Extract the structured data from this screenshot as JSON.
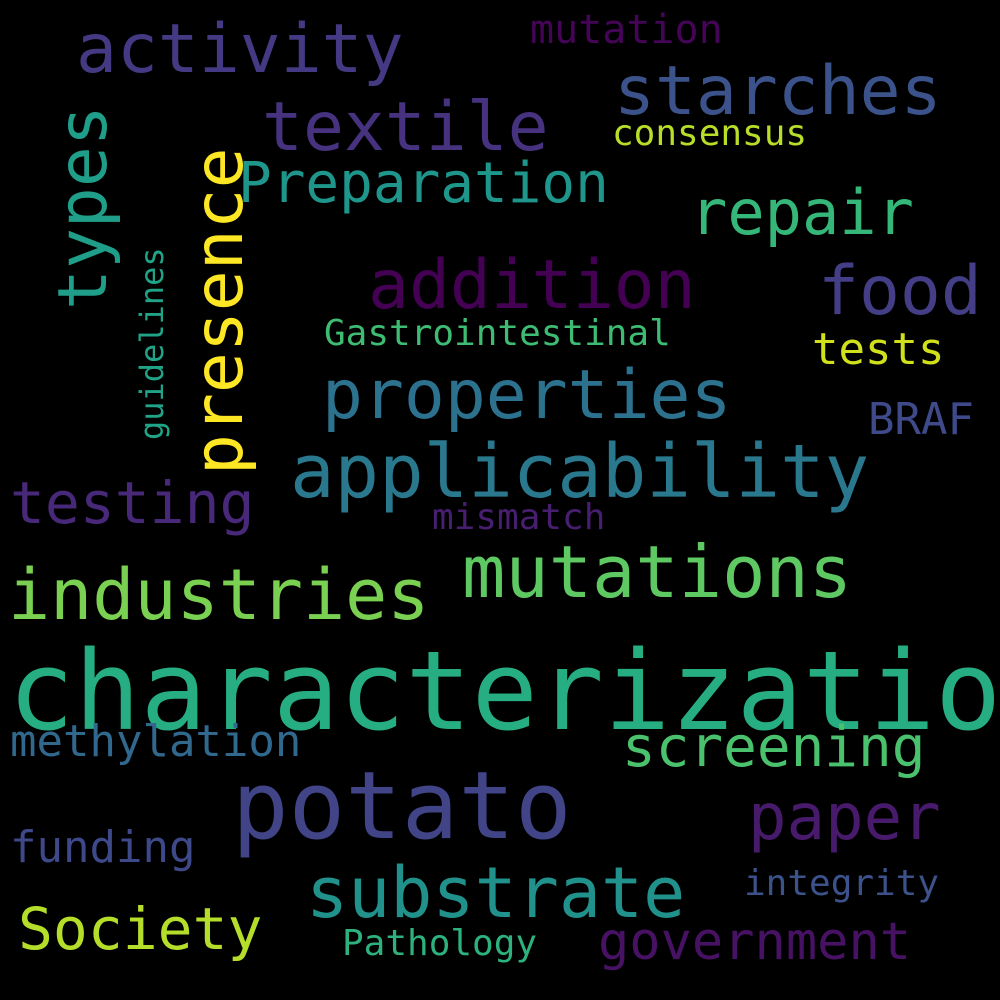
{
  "words": {
    "characterization": {
      "text": "characterization",
      "color": "#26ad81"
    },
    "potato": {
      "text": "potato",
      "color": "#414487"
    },
    "presence": {
      "text": "presence",
      "color": "#fde725"
    },
    "applicability": {
      "text": "applicability",
      "color": "#2a788e"
    },
    "mutations": {
      "text": "mutations",
      "color": "#5ec962"
    },
    "industries": {
      "text": "industries",
      "color": "#7ad151"
    },
    "substrate": {
      "text": "substrate",
      "color": "#21918c"
    },
    "activity": {
      "text": "activity",
      "color": "#443983"
    },
    "textile": {
      "text": "textile",
      "color": "#46327e"
    },
    "starches": {
      "text": "starches",
      "color": "#3b528b"
    },
    "types": {
      "text": "types",
      "color": "#1f9e89"
    },
    "addition": {
      "text": "addition",
      "color": "#440154"
    },
    "food": {
      "text": "food",
      "color": "#433e85"
    },
    "properties": {
      "text": "properties",
      "color": "#2c728e"
    },
    "paper": {
      "text": "paper",
      "color": "#481a6c"
    },
    "repair": {
      "text": "repair",
      "color": "#35b779"
    },
    "Preparation": {
      "text": "Preparation",
      "color": "#1f968b"
    },
    "testing": {
      "text": "testing",
      "color": "#482878"
    },
    "screening": {
      "text": "screening",
      "color": "#4ac16d"
    },
    "Society": {
      "text": "Society",
      "color": "#b5de2b"
    },
    "government": {
      "text": "government",
      "color": "#471164"
    },
    "methylation": {
      "text": "methylation",
      "color": "#31688e"
    },
    "funding": {
      "text": "funding",
      "color": "#3e4989"
    },
    "mutation": {
      "text": "mutation",
      "color": "#450457"
    },
    "consensus": {
      "text": "consensus",
      "color": "#b8de29"
    },
    "guidelines": {
      "text": "guidelines",
      "color": "#20a386"
    },
    "Gastrointestinal": {
      "text": "Gastrointestinal",
      "color": "#3fbc73"
    },
    "tests": {
      "text": "tests",
      "color": "#d0e11c"
    },
    "BRAF": {
      "text": "BRAF",
      "color": "#3e4a89"
    },
    "mismatch": {
      "text": "mismatch",
      "color": "#481f70"
    },
    "integrity": {
      "text": "integrity",
      "color": "#3b528b"
    },
    "Pathology": {
      "text": "Pathology",
      "color": "#2db27d"
    }
  }
}
